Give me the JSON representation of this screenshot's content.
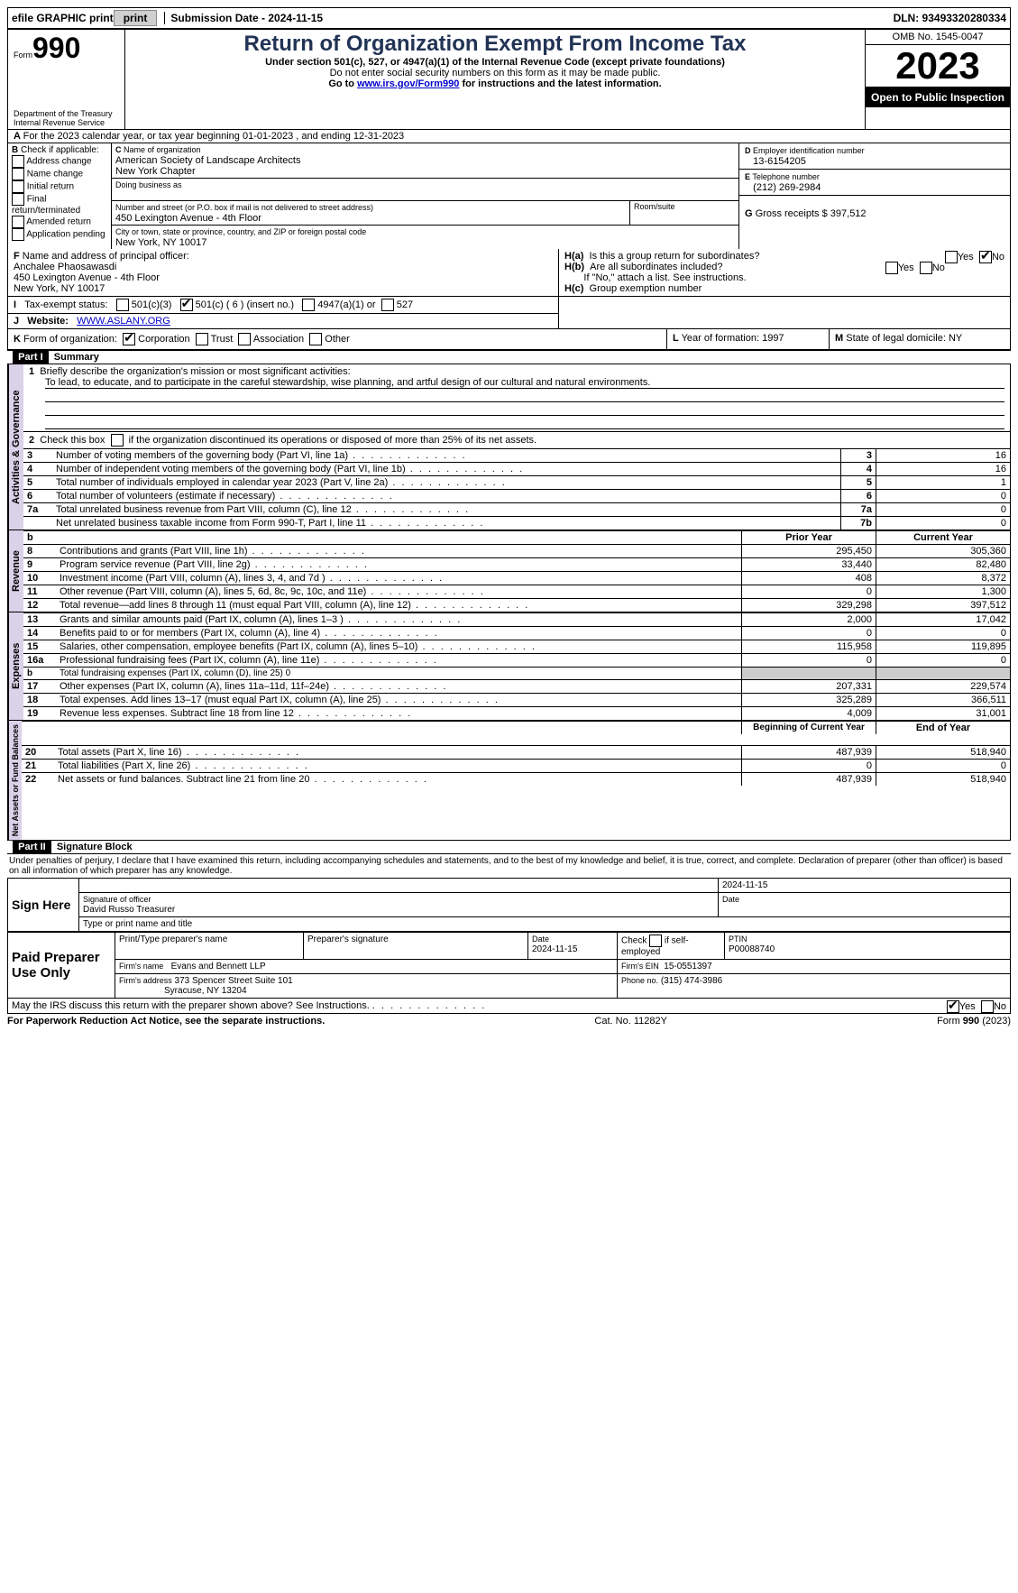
{
  "top": {
    "efile": "efile GRAPHIC print",
    "submission_label": "Submission Date - 2024-11-15",
    "dln_label": "DLN: 93493320280334"
  },
  "header": {
    "form_label": "Form",
    "form_num": "990",
    "dept": "Department of the Treasury",
    "irs": "Internal Revenue Service",
    "title": "Return of Organization Exempt From Income Tax",
    "sub1": "Under section 501(c), 527, or 4947(a)(1) of the Internal Revenue Code (except private foundations)",
    "sub2": "Do not enter social security numbers on this form as it may be made public.",
    "sub3_pre": "Go to ",
    "sub3_link": "www.irs.gov/Form990",
    "sub3_post": " for instructions and the latest information.",
    "omb": "OMB No. 1545-0047",
    "year": "2023",
    "open": "Open to Public Inspection"
  },
  "A": {
    "line": "For the 2023 calendar year, or tax year beginning 01-01-2023   , and ending 12-31-2023"
  },
  "B": {
    "label": "Check if applicable:",
    "items": [
      "Address change",
      "Name change",
      "Initial return",
      "Final return/terminated",
      "Amended return",
      "Application pending"
    ]
  },
  "C": {
    "name_lbl": "Name of organization",
    "name1": "American Society of Landscape Architects",
    "name2": "New York Chapter",
    "dba_lbl": "Doing business as",
    "street_lbl": "Number and street (or P.O. box if mail is not delivered to street address)",
    "room_lbl": "Room/suite",
    "street": "450 Lexington Avenue - 4th Floor",
    "city_lbl": "City or town, state or province, country, and ZIP or foreign postal code",
    "city": "New York, NY  10017"
  },
  "D": {
    "lbl": "Employer identification number",
    "val": "13-6154205",
    "letter": "D"
  },
  "E": {
    "lbl": "Telephone number",
    "val": "(212) 269-2984",
    "letter": "E"
  },
  "G": {
    "lbl": "Gross receipts $",
    "val": "397,512",
    "letter": "G"
  },
  "F": {
    "lbl": "Name and address of principal officer:",
    "l1": "Anchalee Phaosawasdi",
    "l2": "450 Lexington Avenue - 4th Floor",
    "l3": "New York, NY  10017",
    "letter": "F"
  },
  "H": {
    "a": "Is this a group return for subordinates?",
    "b": "Are all subordinates included?",
    "bnote": "If \"No,\" attach a list. See instructions.",
    "c": "Group exemption number",
    "yes": "Yes",
    "no": "No"
  },
  "I": {
    "lbl": "Tax-exempt status:",
    "o1": "501(c)(3)",
    "o2": "501(c) ( 6 ) (insert no.)",
    "o3": "4947(a)(1) or",
    "o4": "527"
  },
  "J": {
    "lbl": "Website:",
    "val": "WWW.ASLANY.ORG"
  },
  "K": {
    "lbl": "Form of organization:",
    "o1": "Corporation",
    "o2": "Trust",
    "o3": "Association",
    "o4": "Other"
  },
  "L": {
    "lbl": "Year of formation:",
    "val": "1997"
  },
  "M": {
    "lbl": "State of legal domicile:",
    "val": "NY"
  },
  "part1": {
    "title": "Summary",
    "part_lbl": "Part I",
    "vlabels": {
      "ag": "Activities & Governance",
      "rev": "Revenue",
      "exp": "Expenses",
      "na": "Net Assets or Fund Balances"
    },
    "l1_lbl": "Briefly describe the organization's mission or most significant activities:",
    "l1_val": "To lead, to educate, and to participate in the careful stewardship, wise planning, and artful design of our cultural and natural environments.",
    "l2": "Check this box       if the organization discontinued its operations or disposed of more than 25% of its net assets.",
    "lines_ag": [
      {
        "n": "3",
        "t": "Number of voting members of the governing body (Part VI, line 1a)",
        "box": "3",
        "v": "16"
      },
      {
        "n": "4",
        "t": "Number of independent voting members of the governing body (Part VI, line 1b)",
        "box": "4",
        "v": "16"
      },
      {
        "n": "5",
        "t": "Total number of individuals employed in calendar year 2023 (Part V, line 2a)",
        "box": "5",
        "v": "1"
      },
      {
        "n": "6",
        "t": "Total number of volunteers (estimate if necessary)",
        "box": "6",
        "v": "0"
      },
      {
        "n": "7a",
        "t": "Total unrelated business revenue from Part VIII, column (C), line 12",
        "box": "7a",
        "v": "0"
      },
      {
        "n": "",
        "t": "Net unrelated business taxable income from Form 990-T, Part I, line 11",
        "box": "7b",
        "v": "0"
      }
    ],
    "hdr_prior": "Prior Year",
    "hdr_curr": "Current Year",
    "lines_rev": [
      {
        "n": "8",
        "t": "Contributions and grants (Part VIII, line 1h)",
        "p": "295,450",
        "c": "305,360"
      },
      {
        "n": "9",
        "t": "Program service revenue (Part VIII, line 2g)",
        "p": "33,440",
        "c": "82,480"
      },
      {
        "n": "10",
        "t": "Investment income (Part VIII, column (A), lines 3, 4, and 7d )",
        "p": "408",
        "c": "8,372"
      },
      {
        "n": "11",
        "t": "Other revenue (Part VIII, column (A), lines 5, 6d, 8c, 9c, 10c, and 11e)",
        "p": "0",
        "c": "1,300"
      },
      {
        "n": "12",
        "t": "Total revenue—add lines 8 through 11 (must equal Part VIII, column (A), line 12)",
        "p": "329,298",
        "c": "397,512"
      }
    ],
    "lines_exp": [
      {
        "n": "13",
        "t": "Grants and similar amounts paid (Part IX, column (A), lines 1–3 )",
        "p": "2,000",
        "c": "17,042"
      },
      {
        "n": "14",
        "t": "Benefits paid to or for members (Part IX, column (A), line 4)",
        "p": "0",
        "c": "0"
      },
      {
        "n": "15",
        "t": "Salaries, other compensation, employee benefits (Part IX, column (A), lines 5–10)",
        "p": "115,958",
        "c": "119,895"
      },
      {
        "n": "16a",
        "t": "Professional fundraising fees (Part IX, column (A), line 11e)",
        "p": "0",
        "c": "0"
      },
      {
        "n": "b",
        "t": "Total fundraising expenses (Part IX, column (D), line 25) 0",
        "p": "",
        "c": "",
        "shade": true,
        "small": true
      },
      {
        "n": "17",
        "t": "Other expenses (Part IX, column (A), lines 11a–11d, 11f–24e)",
        "p": "207,331",
        "c": "229,574"
      },
      {
        "n": "18",
        "t": "Total expenses. Add lines 13–17 (must equal Part IX, column (A), line 25)",
        "p": "325,289",
        "c": "366,511"
      },
      {
        "n": "19",
        "t": "Revenue less expenses. Subtract line 18 from line 12",
        "p": "4,009",
        "c": "31,001"
      }
    ],
    "hdr_beg": "Beginning of Current Year",
    "hdr_end": "End of Year",
    "lines_na": [
      {
        "n": "20",
        "t": "Total assets (Part X, line 16)",
        "p": "487,939",
        "c": "518,940"
      },
      {
        "n": "21",
        "t": "Total liabilities (Part X, line 26)",
        "p": "0",
        "c": "0"
      },
      {
        "n": "22",
        "t": "Net assets or fund balances. Subtract line 21 from line 20",
        "p": "487,939",
        "c": "518,940"
      }
    ]
  },
  "part2": {
    "part_lbl": "Part II",
    "title": "Signature Block",
    "decl": "Under penalties of perjury, I declare that I have examined this return, including accompanying schedules and statements, and to the best of my knowledge and belief, it is true, correct, and complete. Declaration of preparer (other than officer) is based on all information of which preparer has any knowledge.",
    "sign_here": "Sign Here",
    "date": "2024-11-15",
    "sig_officer_lbl": "Signature of officer",
    "officer": "David Russo  Treasurer",
    "type_lbl": "Type or print name and title",
    "date_lbl": "Date",
    "paid": "Paid Preparer Use Only",
    "prep_name_lbl": "Print/Type preparer's name",
    "prep_sig_lbl": "Preparer's signature",
    "prep_date": "2024-11-15",
    "self_emp": "Check        if self-employed",
    "ptin_lbl": "PTIN",
    "ptin": "P00088740",
    "firm_name_lbl": "Firm's name",
    "firm_name": "Evans and Bennett LLP",
    "firm_ein_lbl": "Firm's EIN",
    "firm_ein": "15-0551397",
    "firm_addr_lbl": "Firm's address",
    "firm_addr1": "373 Spencer Street Suite 101",
    "firm_addr2": "Syracuse, NY  13204",
    "phone_lbl": "Phone no.",
    "phone": "(315) 474-3986",
    "discuss": "May the IRS discuss this return with the preparer shown above? See Instructions."
  },
  "footer": {
    "l": "For Paperwork Reduction Act Notice, see the separate instructions.",
    "m": "Cat. No. 11282Y",
    "r": "Form 990 (2023)"
  }
}
